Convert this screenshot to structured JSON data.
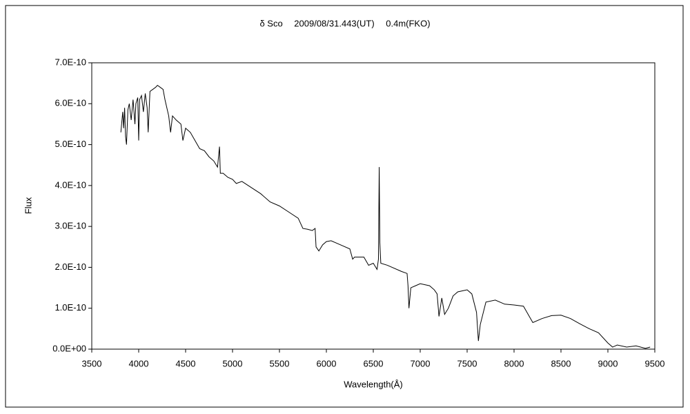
{
  "chart_data": {
    "type": "line",
    "title": "δ Sco　 2009/08/31.443(UT)　 0.4m(FKO)",
    "xlabel": "Wavelength(Å)",
    "ylabel": "Flux",
    "xlim": [
      3500,
      9500
    ],
    "xticks": [
      3500,
      4000,
      4500,
      5000,
      5500,
      6000,
      6500,
      7000,
      7500,
      8000,
      8500,
      9000,
      9500
    ],
    "ylim": [
      0,
      7e-10
    ],
    "yticks": [
      {
        "value": 0,
        "label": "0.0E+00"
      },
      {
        "value": 1e-10,
        "label": "1.0E-10"
      },
      {
        "value": 2e-10,
        "label": "2.0E-10"
      },
      {
        "value": 3e-10,
        "label": "3.0E-10"
      },
      {
        "value": 4e-10,
        "label": "4.0E-10"
      },
      {
        "value": 5e-10,
        "label": "5.0E-10"
      },
      {
        "value": 6e-10,
        "label": "6.0E-10"
      },
      {
        "value": 7e-10,
        "label": "7.0E-10"
      }
    ],
    "grid": false,
    "series": [
      {
        "color": "#000000",
        "x": [
          3810,
          3830,
          3840,
          3850,
          3860,
          3870,
          3885,
          3900,
          3920,
          3940,
          3960,
          3970,
          3990,
          4000,
          4010,
          4030,
          4050,
          4070,
          4090,
          4101,
          4120,
          4150,
          4180,
          4200,
          4230,
          4260,
          4280,
          4300,
          4320,
          4340,
          4360,
          4400,
          4450,
          4471,
          4500,
          4550,
          4600,
          4650,
          4700,
          4750,
          4800,
          4840,
          4861,
          4870,
          4900,
          4950,
          5000,
          5040,
          5100,
          5200,
          5300,
          5400,
          5500,
          5600,
          5700,
          5750,
          5800,
          5850,
          5880,
          5890,
          5920,
          5960,
          6000,
          6050,
          6150,
          6250,
          6280,
          6300,
          6400,
          6450,
          6500,
          6540,
          6555,
          6563,
          6570,
          6580,
          6650,
          6800,
          6860,
          6870,
          6880,
          6900,
          6950,
          7000,
          7100,
          7150,
          7180,
          7200,
          7230,
          7260,
          7300,
          7350,
          7400,
          7500,
          7550,
          7600,
          7620,
          7640,
          7700,
          7800,
          7900,
          8000,
          8100,
          8150,
          8200,
          8300,
          8400,
          8500,
          8600,
          8700,
          8800,
          8900,
          9000,
          9050,
          9100,
          9200,
          9300,
          9400,
          9450
        ],
        "values": [
          5.3e-10,
          5.8e-10,
          5.4e-10,
          5.9e-10,
          5.2e-10,
          5e-10,
          5.85e-10,
          6e-10,
          5.6e-10,
          6.1e-10,
          5.5e-10,
          6e-10,
          6.15e-10,
          5.1e-10,
          6.1e-10,
          6.2e-10,
          5.8e-10,
          6.25e-10,
          5.9e-10,
          5.3e-10,
          6.3e-10,
          6.35e-10,
          6.4e-10,
          6.45e-10,
          6.4e-10,
          6.35e-10,
          6.1e-10,
          5.9e-10,
          5.7e-10,
          5.3e-10,
          5.7e-10,
          5.6e-10,
          5.5e-10,
          5.1e-10,
          5.4e-10,
          5.3e-10,
          5.1e-10,
          4.9e-10,
          4.85e-10,
          4.7e-10,
          4.6e-10,
          4.45e-10,
          4.95e-10,
          4.3e-10,
          4.3e-10,
          4.2e-10,
          4.15e-10,
          4.05e-10,
          4.1e-10,
          3.95e-10,
          3.8e-10,
          3.6e-10,
          3.5e-10,
          3.35e-10,
          3.2e-10,
          2.95e-10,
          2.93e-10,
          2.9e-10,
          2.95e-10,
          2.5e-10,
          2.4e-10,
          2.55e-10,
          2.63e-10,
          2.65e-10,
          2.55e-10,
          2.45e-10,
          2.2e-10,
          2.25e-10,
          2.25e-10,
          2.05e-10,
          2.1e-10,
          1.95e-10,
          2.2e-10,
          4.45e-10,
          2.6e-10,
          2.1e-10,
          2.05e-10,
          1.9e-10,
          1.85e-10,
          1.55e-10,
          1e-10,
          1.5e-10,
          1.55e-10,
          1.6e-10,
          1.55e-10,
          1.45e-10,
          1.35e-10,
          8e-11,
          1.25e-10,
          8.5e-11,
          1e-10,
          1.3e-10,
          1.4e-10,
          1.45e-10,
          1.35e-10,
          9e-11,
          2e-11,
          6e-11,
          1.15e-10,
          1.2e-10,
          1.1e-10,
          1.08e-10,
          1.05e-10,
          8.5e-11,
          6.5e-11,
          7.5e-11,
          8.2e-11,
          8.3e-11,
          7.5e-11,
          6.2e-11,
          5e-11,
          4e-11,
          1.5e-11,
          5e-12,
          1e-11,
          5e-12,
          8e-12,
          2e-12,
          5e-12
        ]
      }
    ]
  }
}
